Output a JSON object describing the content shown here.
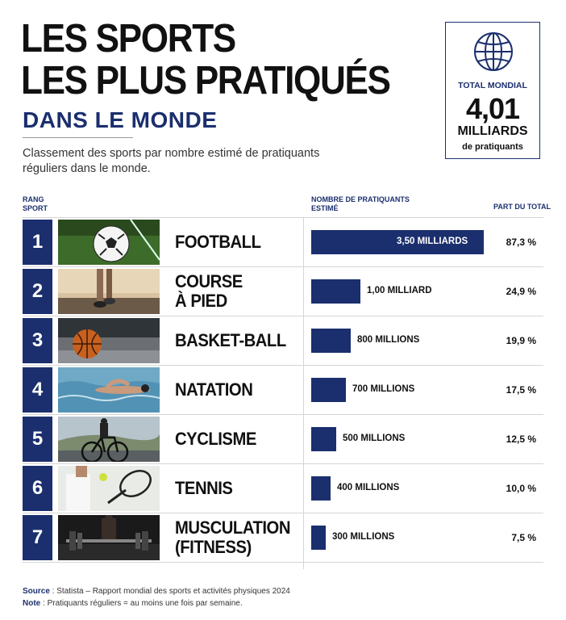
{
  "header": {
    "title_line1": "LES SPORTS",
    "title_line2": "LES PLUS PRATIQUÉS",
    "subtitle": "DANS LE MONDE",
    "description": "Classement des sports par nombre estimé de pratiquants réguliers dans le monde."
  },
  "total": {
    "label": "TOTAL MONDIAL",
    "value": "4,01",
    "unit": "MILLIARDS",
    "sub": "de pratiquants",
    "icon": "globe-icon"
  },
  "columns": {
    "rank_line1": "RANG",
    "rank_line2": "SPORT",
    "count_line1": "NOMBRE DE PRATIQUANTS",
    "count_line2": "ESTIMÉ",
    "share": "PART DU TOTAL"
  },
  "colors": {
    "navy": "#1b2f6e"
  },
  "chart_data": {
    "type": "bar",
    "orientation": "horizontal",
    "categories": [
      "FOOTBALL",
      "COURSE À PIED",
      "BASKET-BALL",
      "NATATION",
      "CYCLISME",
      "TENNIS",
      "MUSCULATION (FITNESS)"
    ],
    "values": [
      3500,
      1000,
      800,
      700,
      500,
      400,
      300
    ],
    "unit": "millions",
    "xlim": [
      0,
      3500
    ]
  },
  "rows": [
    {
      "rank": "1",
      "name_line1": "FOOTBALL",
      "name_line2": "",
      "value_label": "3,50 MILLIARDS",
      "share": "87,3 %",
      "image": "football-photo"
    },
    {
      "rank": "2",
      "name_line1": "COURSE",
      "name_line2": "À PIED",
      "value_label": "1,00 MILLIARD",
      "share": "24,9 %",
      "image": "running-photo"
    },
    {
      "rank": "3",
      "name_line1": "BASKET-BALL",
      "name_line2": "",
      "value_label": "800 MILLIONS",
      "share": "19,9 %",
      "image": "basketball-photo"
    },
    {
      "rank": "4",
      "name_line1": "NATATION",
      "name_line2": "",
      "value_label": "700 MILLIONS",
      "share": "17,5 %",
      "image": "swimming-photo"
    },
    {
      "rank": "5",
      "name_line1": "CYCLISME",
      "name_line2": "",
      "value_label": "500 MILLIONS",
      "share": "12,5 %",
      "image": "cycling-photo"
    },
    {
      "rank": "6",
      "name_line1": "TENNIS",
      "name_line2": "",
      "value_label": "400 MILLIONS",
      "share": "10,0 %",
      "image": "tennis-photo"
    },
    {
      "rank": "7",
      "name_line1": "MUSCULATION",
      "name_line2": "(FITNESS)",
      "value_label": "300 MILLIONS",
      "share": "7,5 %",
      "image": "gym-photo"
    }
  ],
  "footer": {
    "source_label": "Source",
    "source_text": " : Statista – Rapport mondial des sports et activités physiques 2024",
    "note_label": "Note",
    "note_text": " : Pratiquants réguliers = au moins une fois par semaine."
  }
}
